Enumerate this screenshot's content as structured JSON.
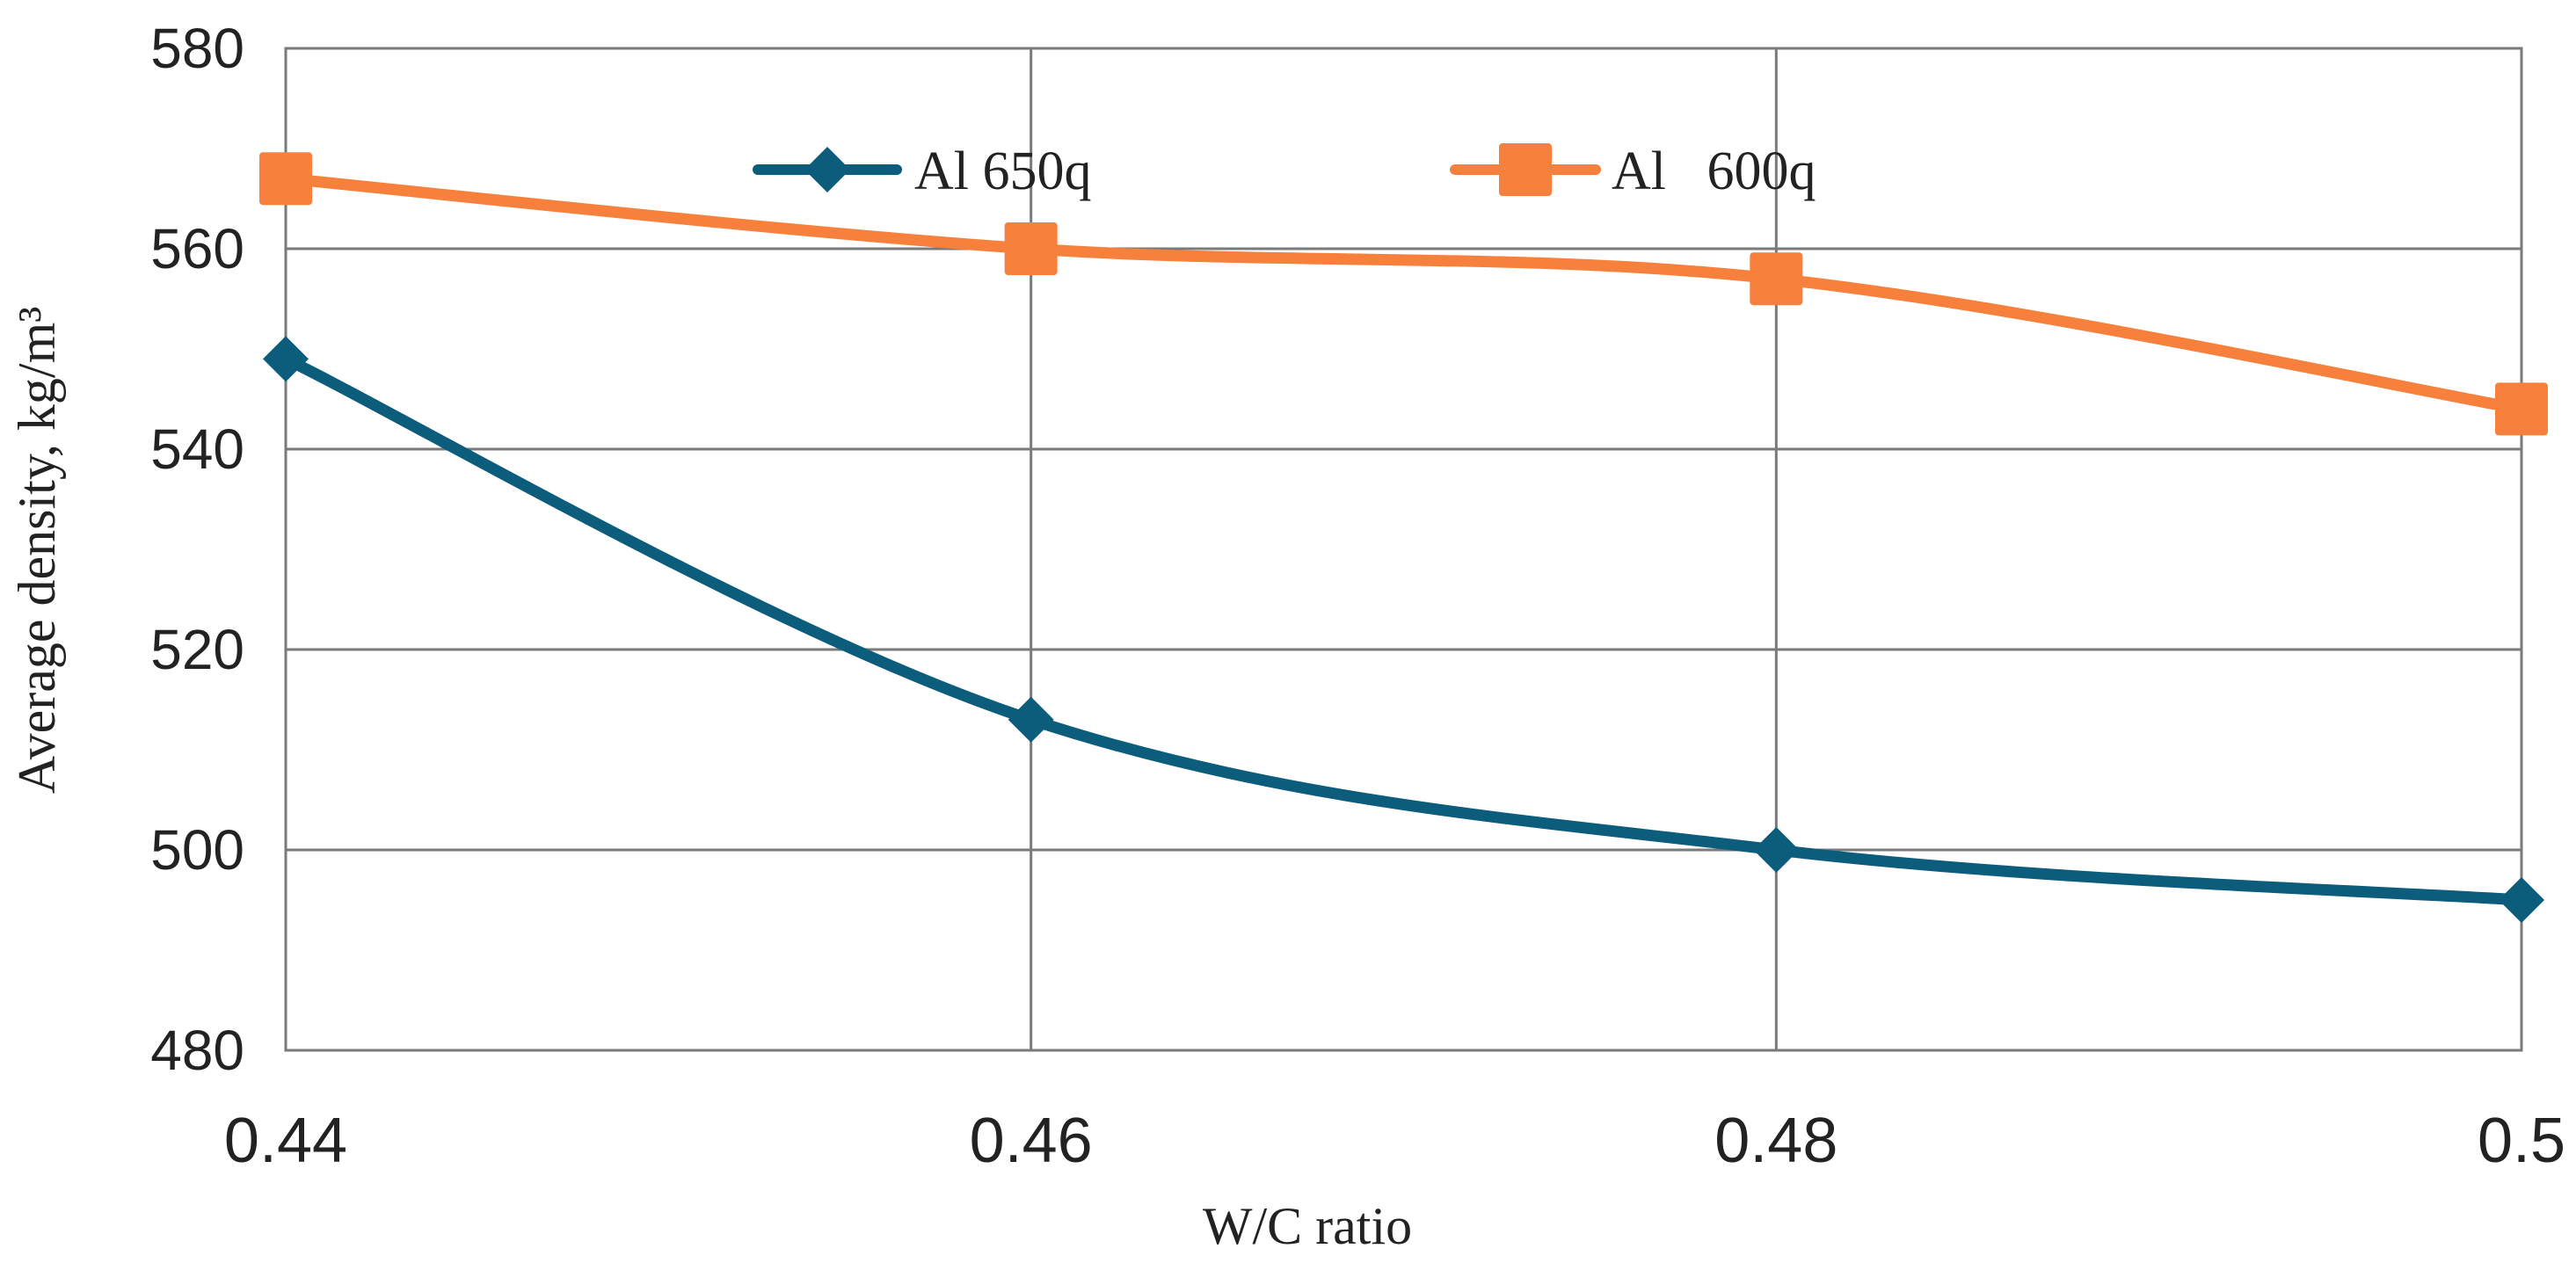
{
  "chart_data": {
    "type": "line",
    "title": "",
    "xlabel": "W/C ratio",
    "ylabel": "Average density, kg/m³",
    "x": [
      0.44,
      0.46,
      0.48,
      0.5
    ],
    "x_tick_labels": [
      "0.44",
      "0.46",
      "0.48",
      "0.5"
    ],
    "y_ticks": [
      480,
      500,
      520,
      540,
      560,
      580
    ],
    "y_tick_labels": [
      "480",
      "500",
      "520",
      "540",
      "560",
      "580"
    ],
    "xlim": [
      0.44,
      0.5
    ],
    "ylim": [
      480,
      580
    ],
    "grid": true,
    "legend_position": "top",
    "series": [
      {
        "name": "Al 650q",
        "label": "Al 650q",
        "marker": "diamond",
        "color": "#0c5d7c",
        "values": [
          549,
          513,
          500,
          495
        ]
      },
      {
        "name": "Al 600q",
        "label": "Al   600q",
        "marker": "square",
        "color": "#f7803c",
        "values": [
          567,
          560,
          557,
          544
        ]
      }
    ]
  }
}
